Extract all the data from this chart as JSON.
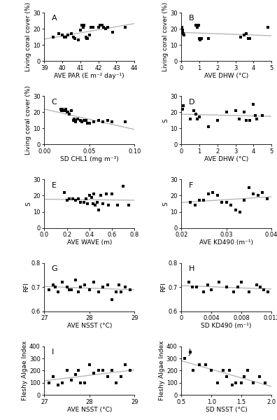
{
  "panels": [
    {
      "label": "A",
      "xlabel": "AVE PAR (E m⁻² day⁻¹)",
      "ylabel": "Living coral cover (%)",
      "xlim": [
        39,
        44
      ],
      "ylim": [
        0,
        30
      ],
      "xticks": [
        39,
        40,
        41,
        42,
        43,
        44
      ],
      "yticks": [
        0,
        10,
        20,
        30
      ],
      "x": [
        39.5,
        39.8,
        40.0,
        40.1,
        40.2,
        40.3,
        40.5,
        40.6,
        40.7,
        40.9,
        41.0,
        41.1,
        41.15,
        41.2,
        41.3,
        41.35,
        41.4,
        41.5,
        41.6,
        41.7,
        42.0,
        42.1,
        42.2,
        42.3,
        42.4,
        42.5,
        42.8,
        43.5
      ],
      "y": [
        15,
        17,
        16,
        15,
        15,
        16,
        17,
        15,
        14,
        13,
        19,
        22,
        21,
        22,
        15,
        14,
        14,
        16,
        21,
        21,
        21,
        22,
        22,
        21,
        20,
        21,
        18,
        21
      ]
    },
    {
      "label": "B",
      "xlabel": "AVE DHW (°C)",
      "ylabel": "Living coral cover (%)",
      "xlim": [
        0,
        5
      ],
      "ylim": [
        0,
        30
      ],
      "xticks": [
        0,
        1,
        2,
        3,
        4,
        5
      ],
      "yticks": [
        0,
        10,
        20,
        30
      ],
      "x": [
        0.02,
        0.05,
        0.08,
        0.1,
        0.12,
        0.15,
        0.8,
        0.9,
        0.95,
        1.0,
        1.05,
        1.1,
        1.5,
        3.3,
        3.5,
        3.6,
        3.7,
        3.8,
        4.8
      ],
      "y": [
        21,
        19,
        18,
        17,
        17,
        16,
        22,
        21,
        22,
        14,
        13,
        14,
        14,
        15,
        16,
        17,
        14,
        14,
        21
      ]
    },
    {
      "label": "C",
      "xlabel": "SD CHL1 (mg m⁻³)",
      "ylabel": "Living coral cover (%)",
      "xlim": [
        0.0,
        0.1
      ],
      "ylim": [
        0,
        30
      ],
      "xticks": [
        0.0,
        0.05,
        0.1
      ],
      "yticks": [
        0,
        10,
        20,
        30
      ],
      "x": [
        0.018,
        0.019,
        0.02,
        0.022,
        0.024,
        0.025,
        0.026,
        0.028,
        0.03,
        0.032,
        0.033,
        0.034,
        0.035,
        0.037,
        0.04,
        0.042,
        0.044,
        0.046,
        0.048,
        0.05,
        0.055,
        0.06,
        0.065,
        0.07,
        0.075,
        0.09
      ],
      "y": [
        22,
        21,
        22,
        21,
        22,
        20,
        20,
        19,
        21,
        15,
        16,
        15,
        14,
        16,
        15,
        14,
        15,
        15,
        13,
        13,
        14,
        15,
        14,
        15,
        14,
        14
      ]
    },
    {
      "label": "D",
      "xlabel": "AVE DHW (°C)",
      "ylabel": "S",
      "xlim": [
        0,
        5
      ],
      "ylim": [
        0,
        30
      ],
      "xticks": [
        0,
        1,
        2,
        3,
        4,
        5
      ],
      "yticks": [
        0,
        10,
        20,
        30
      ],
      "x": [
        0.05,
        0.1,
        0.5,
        0.7,
        0.8,
        0.9,
        1.0,
        1.5,
        2.0,
        2.5,
        3.0,
        3.2,
        3.5,
        3.6,
        3.8,
        4.0,
        4.1,
        4.2,
        4.5
      ],
      "y": [
        22,
        24,
        16,
        21,
        19,
        16,
        17,
        11,
        15,
        20,
        21,
        16,
        20,
        15,
        15,
        25,
        18,
        16,
        18
      ]
    },
    {
      "label": "E",
      "xlabel": "AVE WAVE (m)",
      "ylabel": "S",
      "xlim": [
        0.0,
        0.8
      ],
      "ylim": [
        0,
        30
      ],
      "xticks": [
        0.0,
        0.2,
        0.4,
        0.6,
        0.8
      ],
      "yticks": [
        0,
        10,
        20,
        30
      ],
      "x": [
        0.18,
        0.2,
        0.22,
        0.25,
        0.28,
        0.3,
        0.32,
        0.35,
        0.37,
        0.38,
        0.4,
        0.42,
        0.43,
        0.44,
        0.45,
        0.47,
        0.48,
        0.5,
        0.52,
        0.55,
        0.57,
        0.6,
        0.65,
        0.7,
        0.75
      ],
      "y": [
        22,
        17,
        18,
        18,
        17,
        18,
        16,
        16,
        18,
        15,
        20,
        19,
        15,
        21,
        14,
        16,
        11,
        20,
        15,
        21,
        14,
        21,
        14,
        26,
        14
      ]
    },
    {
      "label": "F",
      "xlabel": "AVE KD490 (m⁻¹)",
      "ylabel": "S",
      "xlim": [
        0.02,
        0.04
      ],
      "ylim": [
        0,
        30
      ],
      "xticks": [
        0.02,
        0.03,
        0.04
      ],
      "yticks": [
        0,
        10,
        20,
        30
      ],
      "x": [
        0.022,
        0.023,
        0.024,
        0.025,
        0.026,
        0.027,
        0.028,
        0.029,
        0.03,
        0.031,
        0.032,
        0.033,
        0.034,
        0.035,
        0.036,
        0.037,
        0.038,
        0.039
      ],
      "y": [
        16,
        14,
        17,
        17,
        21,
        22,
        20,
        16,
        16,
        14,
        11,
        10,
        17,
        25,
        21,
        20,
        22,
        18
      ]
    },
    {
      "label": "G",
      "xlabel": "AVE NSST (°C)",
      "ylabel": "RFI",
      "xlim": [
        27,
        29
      ],
      "ylim": [
        0.6,
        0.8
      ],
      "xticks": [
        27,
        28,
        29
      ],
      "yticks": [
        0.6,
        0.7,
        0.8
      ],
      "x": [
        27.1,
        27.2,
        27.25,
        27.3,
        27.4,
        27.5,
        27.55,
        27.6,
        27.7,
        27.75,
        27.8,
        27.9,
        28.0,
        28.1,
        28.2,
        28.3,
        28.4,
        28.5,
        28.6,
        28.65,
        28.7,
        28.8,
        28.9
      ],
      "y": [
        0.69,
        0.71,
        0.7,
        0.68,
        0.72,
        0.7,
        0.69,
        0.69,
        0.73,
        0.68,
        0.7,
        0.71,
        0.69,
        0.72,
        0.68,
        0.7,
        0.71,
        0.65,
        0.68,
        0.71,
        0.68,
        0.7,
        0.69
      ]
    },
    {
      "label": "H",
      "xlabel": "SD KD490 (m⁻¹)",
      "ylabel": "RFI",
      "xlim": [
        0,
        0.012
      ],
      "ylim": [
        0.6,
        0.8
      ],
      "xticks": [
        0,
        0.004,
        0.008,
        0.012
      ],
      "yticks": [
        0.6,
        0.7,
        0.8
      ],
      "x": [
        0.001,
        0.0015,
        0.002,
        0.003,
        0.0035,
        0.004,
        0.005,
        0.006,
        0.007,
        0.0075,
        0.008,
        0.009,
        0.01,
        0.0105,
        0.011,
        0.0115
      ],
      "y": [
        0.72,
        0.7,
        0.7,
        0.68,
        0.71,
        0.69,
        0.72,
        0.7,
        0.68,
        0.7,
        0.72,
        0.68,
        0.71,
        0.7,
        0.69,
        0.68
      ]
    },
    {
      "label": "I",
      "xlabel": "AVE NSST (°C)",
      "ylabel": "Fleshy Algae Index",
      "xlim": [
        27,
        29
      ],
      "ylim": [
        0,
        400
      ],
      "xticks": [
        27,
        28,
        29
      ],
      "yticks": [
        0,
        100,
        200,
        300,
        400
      ],
      "x": [
        27.1,
        27.2,
        27.3,
        27.4,
        27.5,
        27.6,
        27.7,
        27.75,
        27.8,
        27.9,
        28.0,
        28.1,
        28.2,
        28.3,
        28.4,
        28.5,
        28.6,
        28.7,
        28.8,
        28.9
      ],
      "y": [
        100,
        150,
        80,
        100,
        200,
        120,
        170,
        200,
        100,
        100,
        250,
        180,
        200,
        200,
        150,
        200,
        100,
        150,
        250,
        200
      ]
    },
    {
      "label": "J",
      "xlabel": "SD NSST (°C)",
      "ylabel": "Fleshy Algae Index",
      "xlim": [
        0.5,
        2.0
      ],
      "ylim": [
        0,
        400
      ],
      "xticks": [
        0.5,
        1.0,
        1.5,
        2.0
      ],
      "yticks": [
        0,
        100,
        200,
        300,
        400
      ],
      "x": [
        0.55,
        0.65,
        0.7,
        0.8,
        0.9,
        1.0,
        1.1,
        1.2,
        1.25,
        1.3,
        1.35,
        1.4,
        1.5,
        1.55,
        1.6,
        1.7,
        1.8,
        1.9
      ],
      "y": [
        300,
        350,
        200,
        250,
        250,
        200,
        100,
        200,
        150,
        200,
        80,
        100,
        100,
        150,
        200,
        100,
        150,
        100
      ]
    }
  ],
  "marker": "s",
  "marker_size": 9,
  "marker_color": "black",
  "line_color": "#b0b0b0",
  "background_color": "white",
  "label_fontsize": 6.5,
  "tick_fontsize": 6,
  "panel_label_fontsize": 8
}
